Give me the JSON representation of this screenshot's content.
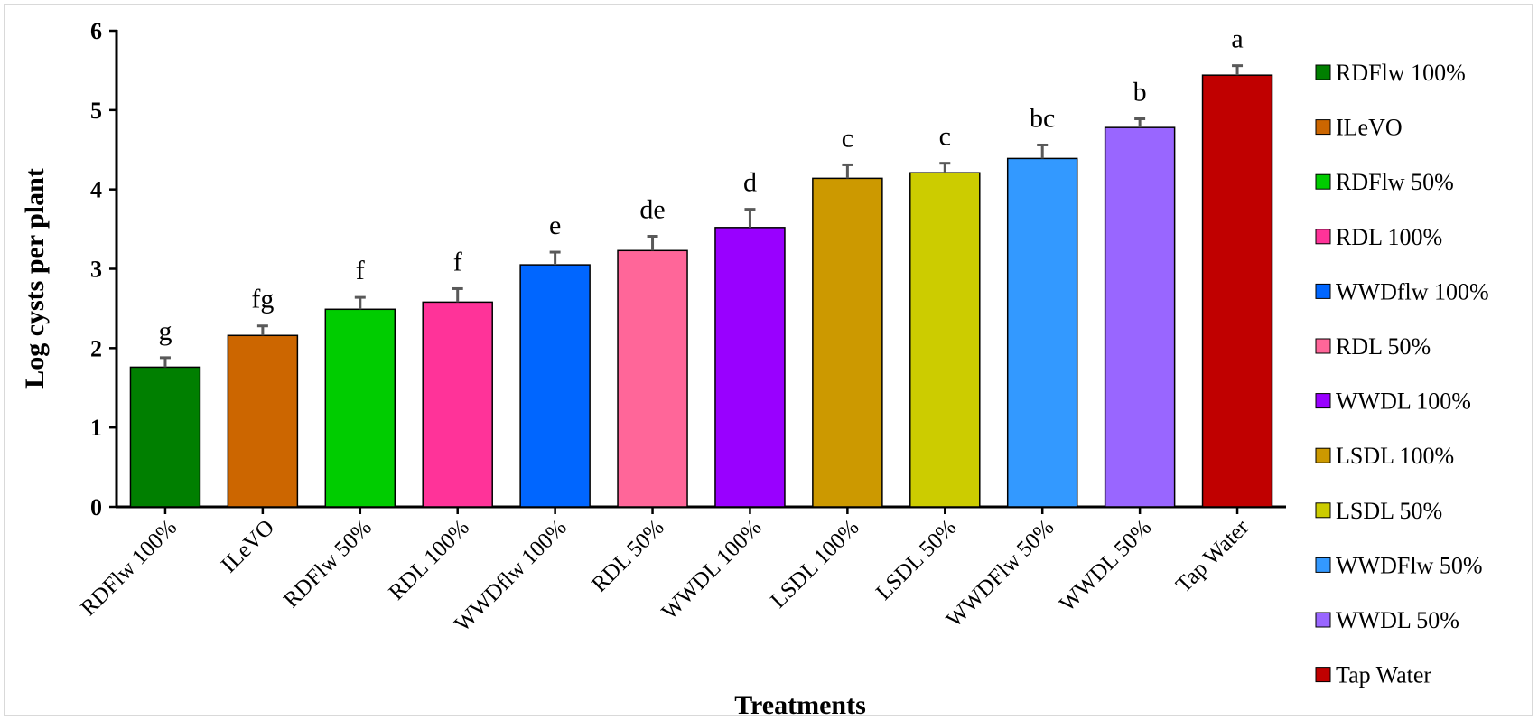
{
  "chart_data": {
    "type": "bar",
    "title": "",
    "xlabel": "Treatments",
    "ylabel": "Log cysts per plant",
    "ylim": [
      0,
      6
    ],
    "yticks": [
      "0",
      "1",
      "2",
      "3",
      "4",
      "5",
      "6"
    ],
    "categories": [
      "RDFlw 100%",
      "ILeVO",
      "RDFlw 50%",
      "RDL 100%",
      "WWDflw 100%",
      "RDL 50%",
      "WWDL 100%",
      "LSDL 100%",
      "LSDL 50%",
      "WWDFlw 50%",
      "WWDL 50%",
      "Tap Water"
    ],
    "values": [
      1.76,
      2.16,
      2.49,
      2.58,
      3.05,
      3.23,
      3.52,
      4.14,
      4.21,
      4.39,
      4.78,
      5.44
    ],
    "errors": [
      0.12,
      0.12,
      0.15,
      0.17,
      0.16,
      0.18,
      0.23,
      0.17,
      0.12,
      0.17,
      0.11,
      0.12
    ],
    "significance_letters": [
      "g",
      "fg",
      "f",
      "f",
      "e",
      "de",
      "d",
      "c",
      "c",
      "bc",
      "b",
      "a"
    ],
    "colors": [
      "#007f00",
      "#cc6600",
      "#00cc00",
      "#ff3399",
      "#0066ff",
      "#ff6699",
      "#9900ff",
      "#cc9900",
      "#cccc00",
      "#3399ff",
      "#9966ff",
      "#c00000"
    ],
    "legend": {
      "position": "right",
      "entries": [
        "RDFlw 100%",
        "ILeVO",
        "RDFlw 50%",
        "RDL 100%",
        "WWDflw 100%",
        "RDL 50%",
        "WWDL 100%",
        "LSDL 100%",
        "LSDL 50%",
        "WWDFlw 50%",
        "WWDL 50%",
        "Tap Water"
      ]
    },
    "grid": false
  }
}
